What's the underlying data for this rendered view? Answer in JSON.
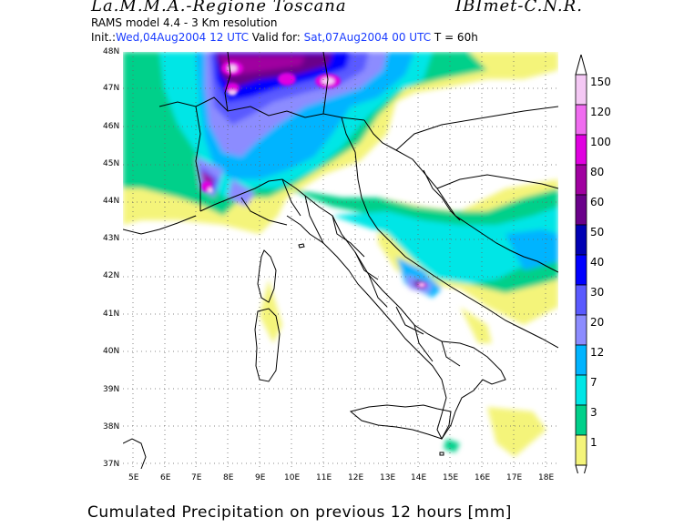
{
  "header": {
    "title_left": "La.M.M.A.-Regione Toscana",
    "title_right": "IBImet-C.N.R.",
    "model_line": "RAMS model 4.4   -   3 Km resolution",
    "init_prefix": "Init.:",
    "init_value": "Wed,04Aug2004 12 UTC",
    "valid_prefix": "Valid for:",
    "valid_value": "Sat,07Aug2004 00 UTC",
    "forecast_hour": "T = 60h"
  },
  "map": {
    "lat_labels": [
      "48N",
      "47N",
      "46N",
      "45N",
      "44N",
      "43N",
      "42N",
      "41N",
      "40N",
      "39N",
      "38N",
      "37N"
    ],
    "lon_labels": [
      "5E",
      "6E",
      "7E",
      "8E",
      "9E",
      "10E",
      "11E",
      "12E",
      "13E",
      "14E",
      "15E",
      "16E",
      "17E",
      "18E"
    ]
  },
  "legend": {
    "levels": [
      {
        "value": "150",
        "color": "#f4c8f4"
      },
      {
        "value": "120",
        "color": "#f06cf0"
      },
      {
        "value": "100",
        "color": "#e000e0"
      },
      {
        "value": "80",
        "color": "#a000a0"
      },
      {
        "value": "60",
        "color": "#6a008a"
      },
      {
        "value": "50",
        "color": "#0000b4"
      },
      {
        "value": "40",
        "color": "#0000ff"
      },
      {
        "value": "30",
        "color": "#5a5aff"
      },
      {
        "value": "20",
        "color": "#8c8cff"
      },
      {
        "value": "12",
        "color": "#00b4ff"
      },
      {
        "value": "7",
        "color": "#00e6e6"
      },
      {
        "value": "3",
        "color": "#00d08a"
      },
      {
        "value": "1",
        "color": "#f4f47a"
      }
    ]
  },
  "caption": "Cumulated Precipitation on previous 12 hours [mm]"
}
